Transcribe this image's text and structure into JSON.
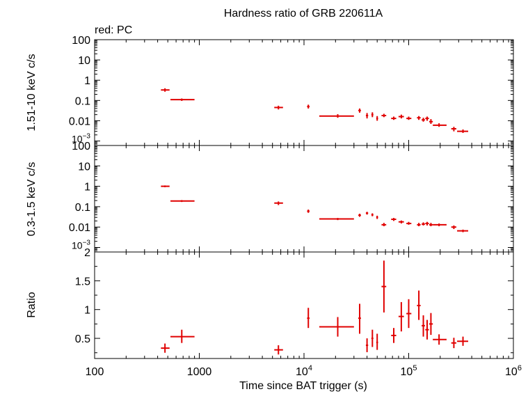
{
  "title": "Hardness ratio of GRB 220611A",
  "subtitle": "red: PC",
  "colors": {
    "series": "#e00000",
    "axes": "#000000",
    "background": "#ffffff"
  },
  "chart_data": [
    {
      "type": "scatter",
      "panel": "hard",
      "ylabel": "1.51-10 keV c/s",
      "xscale": "log",
      "yscale": "log",
      "xlim": [
        100,
        1000000
      ],
      "ylim": [
        0.0006,
        100
      ],
      "ytick_labels": [
        "100",
        "10",
        "1",
        "0.1",
        "0.01",
        "10-3"
      ],
      "yticks": [
        100,
        10,
        1,
        0.1,
        0.01,
        0.001
      ],
      "series": [
        {
          "points": [
            {
              "x": 470,
              "xlo": 430,
              "xhi": 520,
              "y": 0.33,
              "ylo": 0.27,
              "yhi": 0.4
            },
            {
              "x": 680,
              "xlo": 530,
              "xhi": 900,
              "y": 0.11,
              "ylo": 0.095,
              "yhi": 0.125
            },
            {
              "x": 5700,
              "xlo": 5200,
              "xhi": 6300,
              "y": 0.045,
              "ylo": 0.036,
              "yhi": 0.055
            },
            {
              "x": 11000,
              "xlo": 10700,
              "xhi": 11300,
              "y": 0.05,
              "ylo": 0.04,
              "yhi": 0.062
            },
            {
              "x": 21000,
              "xlo": 14000,
              "xhi": 30000,
              "y": 0.017,
              "ylo": 0.014,
              "yhi": 0.021
            },
            {
              "x": 34000,
              "xlo": 33000,
              "xhi": 35000,
              "y": 0.032,
              "ylo": 0.025,
              "yhi": 0.04
            },
            {
              "x": 40000,
              "xlo": 39000,
              "xhi": 41000,
              "y": 0.018,
              "ylo": 0.013,
              "yhi": 0.024
            },
            {
              "x": 45000,
              "xlo": 44000,
              "xhi": 46000,
              "y": 0.02,
              "ylo": 0.015,
              "yhi": 0.026
            },
            {
              "x": 50000,
              "xlo": 49000,
              "xhi": 51000,
              "y": 0.013,
              "ylo": 0.01,
              "yhi": 0.017
            },
            {
              "x": 58000,
              "xlo": 55000,
              "xhi": 61000,
              "y": 0.018,
              "ylo": 0.015,
              "yhi": 0.022
            },
            {
              "x": 72000,
              "xlo": 68000,
              "xhi": 76000,
              "y": 0.013,
              "ylo": 0.011,
              "yhi": 0.016
            },
            {
              "x": 85000,
              "xlo": 80000,
              "xhi": 90000,
              "y": 0.016,
              "ylo": 0.013,
              "yhi": 0.02
            },
            {
              "x": 100000,
              "xlo": 95000,
              "xhi": 106000,
              "y": 0.013,
              "ylo": 0.011,
              "yhi": 0.016
            },
            {
              "x": 125000,
              "xlo": 120000,
              "xhi": 130000,
              "y": 0.014,
              "ylo": 0.011,
              "yhi": 0.017
            },
            {
              "x": 138000,
              "xlo": 133000,
              "xhi": 143000,
              "y": 0.011,
              "ylo": 0.009,
              "yhi": 0.014
            },
            {
              "x": 150000,
              "xlo": 144000,
              "xhi": 156000,
              "y": 0.013,
              "ylo": 0.01,
              "yhi": 0.016
            },
            {
              "x": 163000,
              "xlo": 157000,
              "xhi": 170000,
              "y": 0.009,
              "ylo": 0.007,
              "yhi": 0.012
            },
            {
              "x": 195000,
              "xlo": 170000,
              "xhi": 230000,
              "y": 0.006,
              "ylo": 0.005,
              "yhi": 0.0075
            },
            {
              "x": 270000,
              "xlo": 255000,
              "xhi": 285000,
              "y": 0.004,
              "ylo": 0.003,
              "yhi": 0.005
            },
            {
              "x": 330000,
              "xlo": 290000,
              "xhi": 370000,
              "y": 0.003,
              "ylo": 0.0025,
              "yhi": 0.0037
            }
          ]
        }
      ]
    },
    {
      "type": "scatter",
      "panel": "soft",
      "ylabel": "0.3-1.5 keV c/s",
      "xscale": "log",
      "yscale": "log",
      "xlim": [
        100,
        1000000
      ],
      "ylim": [
        0.0006,
        100
      ],
      "ytick_labels": [
        "100",
        "10",
        "1",
        "0.1",
        "0.01",
        "10-3"
      ],
      "yticks": [
        100,
        10,
        1,
        0.1,
        0.01,
        0.001
      ],
      "series": [
        {
          "points": [
            {
              "x": 470,
              "xlo": 430,
              "xhi": 520,
              "y": 1.0,
              "ylo": 0.9,
              "yhi": 1.1
            },
            {
              "x": 680,
              "xlo": 530,
              "xhi": 900,
              "y": 0.19,
              "ylo": 0.17,
              "yhi": 0.21
            },
            {
              "x": 5700,
              "xlo": 5200,
              "xhi": 6300,
              "y": 0.15,
              "ylo": 0.12,
              "yhi": 0.18
            },
            {
              "x": 11000,
              "xlo": 10700,
              "xhi": 11300,
              "y": 0.06,
              "ylo": 0.05,
              "yhi": 0.072
            },
            {
              "x": 21000,
              "xlo": 14000,
              "xhi": 30000,
              "y": 0.025,
              "ylo": 0.022,
              "yhi": 0.028
            },
            {
              "x": 34000,
              "xlo": 33000,
              "xhi": 35000,
              "y": 0.038,
              "ylo": 0.032,
              "yhi": 0.045
            },
            {
              "x": 40000,
              "xlo": 39000,
              "xhi": 41000,
              "y": 0.048,
              "ylo": 0.041,
              "yhi": 0.056
            },
            {
              "x": 45000,
              "xlo": 44000,
              "xhi": 46000,
              "y": 0.04,
              "ylo": 0.034,
              "yhi": 0.047
            },
            {
              "x": 50000,
              "xlo": 49000,
              "xhi": 51000,
              "y": 0.03,
              "ylo": 0.025,
              "yhi": 0.036
            },
            {
              "x": 58000,
              "xlo": 55000,
              "xhi": 61000,
              "y": 0.013,
              "ylo": 0.011,
              "yhi": 0.016
            },
            {
              "x": 72000,
              "xlo": 68000,
              "xhi": 76000,
              "y": 0.024,
              "ylo": 0.02,
              "yhi": 0.028
            },
            {
              "x": 85000,
              "xlo": 80000,
              "xhi": 90000,
              "y": 0.018,
              "ylo": 0.015,
              "yhi": 0.021
            },
            {
              "x": 100000,
              "xlo": 95000,
              "xhi": 106000,
              "y": 0.015,
              "ylo": 0.013,
              "yhi": 0.018
            },
            {
              "x": 125000,
              "xlo": 120000,
              "xhi": 130000,
              "y": 0.013,
              "ylo": 0.011,
              "yhi": 0.016
            },
            {
              "x": 138000,
              "xlo": 133000,
              "xhi": 143000,
              "y": 0.014,
              "ylo": 0.012,
              "yhi": 0.017
            },
            {
              "x": 150000,
              "xlo": 144000,
              "xhi": 156000,
              "y": 0.015,
              "ylo": 0.012,
              "yhi": 0.018
            },
            {
              "x": 163000,
              "xlo": 157000,
              "xhi": 170000,
              "y": 0.013,
              "ylo": 0.011,
              "yhi": 0.016
            },
            {
              "x": 195000,
              "xlo": 170000,
              "xhi": 230000,
              "y": 0.013,
              "ylo": 0.011,
              "yhi": 0.015
            },
            {
              "x": 270000,
              "xlo": 255000,
              "xhi": 285000,
              "y": 0.01,
              "ylo": 0.008,
              "yhi": 0.012
            },
            {
              "x": 330000,
              "xlo": 290000,
              "xhi": 370000,
              "y": 0.0065,
              "ylo": 0.0056,
              "yhi": 0.0075
            }
          ]
        }
      ]
    },
    {
      "type": "scatter",
      "panel": "ratio",
      "ylabel": "Ratio",
      "xlabel": "Time since BAT trigger (s)",
      "xscale": "log",
      "yscale": "linear",
      "xlim": [
        100,
        1000000
      ],
      "ylim": [
        0.15,
        2.0
      ],
      "ytick_labels": [
        "2",
        "1.5",
        "1",
        "0.5"
      ],
      "yticks": [
        2,
        1.5,
        1,
        0.5
      ],
      "xtick_labels": [
        "100",
        "1000",
        "104",
        "105",
        "106"
      ],
      "xticks": [
        100,
        1000,
        10000,
        100000,
        1000000
      ],
      "series": [
        {
          "points": [
            {
              "x": 470,
              "xlo": 430,
              "xhi": 520,
              "y": 0.33,
              "ylo": 0.25,
              "yhi": 0.41
            },
            {
              "x": 680,
              "xlo": 530,
              "xhi": 900,
              "y": 0.53,
              "ylo": 0.42,
              "yhi": 0.65
            },
            {
              "x": 5700,
              "xlo": 5200,
              "xhi": 6300,
              "y": 0.3,
              "ylo": 0.22,
              "yhi": 0.38
            },
            {
              "x": 11000,
              "xlo": 10700,
              "xhi": 11300,
              "y": 0.85,
              "ylo": 0.68,
              "yhi": 1.03
            },
            {
              "x": 21000,
              "xlo": 14000,
              "xhi": 30000,
              "y": 0.7,
              "ylo": 0.53,
              "yhi": 0.87
            },
            {
              "x": 34000,
              "xlo": 33000,
              "xhi": 35000,
              "y": 0.85,
              "ylo": 0.58,
              "yhi": 1.1
            },
            {
              "x": 40000,
              "xlo": 39000,
              "xhi": 41000,
              "y": 0.38,
              "ylo": 0.26,
              "yhi": 0.5
            },
            {
              "x": 45000,
              "xlo": 44000,
              "xhi": 46000,
              "y": 0.5,
              "ylo": 0.35,
              "yhi": 0.65
            },
            {
              "x": 50000,
              "xlo": 49000,
              "xhi": 51000,
              "y": 0.43,
              "ylo": 0.3,
              "yhi": 0.58
            },
            {
              "x": 58000,
              "xlo": 55000,
              "xhi": 61000,
              "y": 1.4,
              "ylo": 0.95,
              "yhi": 1.85
            },
            {
              "x": 72000,
              "xlo": 68000,
              "xhi": 76000,
              "y": 0.55,
              "ylo": 0.42,
              "yhi": 0.68
            },
            {
              "x": 85000,
              "xlo": 80000,
              "xhi": 90000,
              "y": 0.88,
              "ylo": 0.62,
              "yhi": 1.13
            },
            {
              "x": 100000,
              "xlo": 95000,
              "xhi": 106000,
              "y": 0.93,
              "ylo": 0.68,
              "yhi": 1.18
            },
            {
              "x": 125000,
              "xlo": 120000,
              "xhi": 130000,
              "y": 1.07,
              "ylo": 0.82,
              "yhi": 1.33
            },
            {
              "x": 138000,
              "xlo": 133000,
              "xhi": 143000,
              "y": 0.72,
              "ylo": 0.53,
              "yhi": 0.9
            },
            {
              "x": 150000,
              "xlo": 144000,
              "xhi": 156000,
              "y": 0.65,
              "ylo": 0.48,
              "yhi": 0.82
            },
            {
              "x": 163000,
              "xlo": 157000,
              "xhi": 170000,
              "y": 0.75,
              "ylo": 0.56,
              "yhi": 0.94
            },
            {
              "x": 195000,
              "xlo": 170000,
              "xhi": 230000,
              "y": 0.48,
              "ylo": 0.39,
              "yhi": 0.57
            },
            {
              "x": 270000,
              "xlo": 255000,
              "xhi": 285000,
              "y": 0.42,
              "ylo": 0.33,
              "yhi": 0.51
            },
            {
              "x": 330000,
              "xlo": 290000,
              "xhi": 370000,
              "y": 0.45,
              "ylo": 0.37,
              "yhi": 0.53
            }
          ]
        }
      ]
    }
  ]
}
